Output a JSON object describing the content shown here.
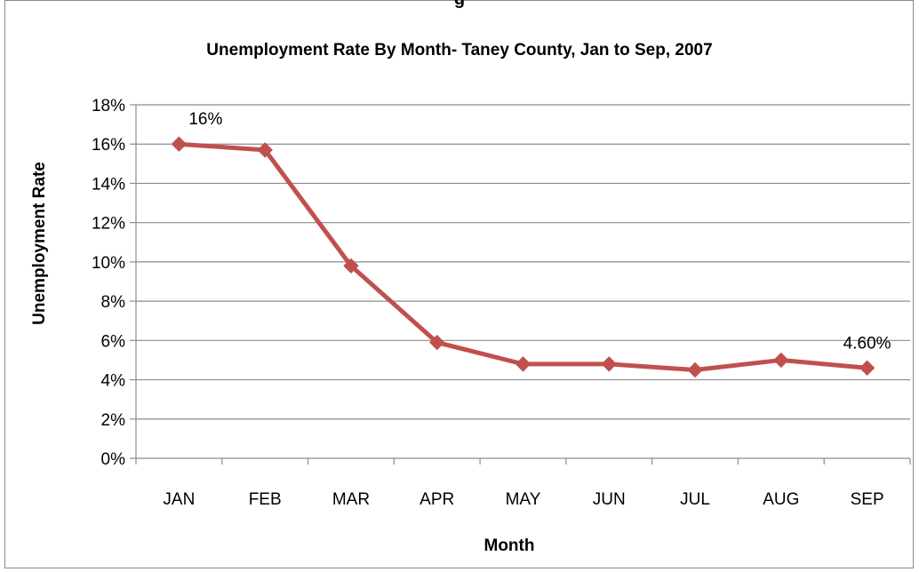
{
  "top_text": "g",
  "chart_data": {
    "type": "line",
    "title": "Unemployment Rate By Month- Taney County, Jan to Sep, 2007",
    "xlabel": "Month",
    "ylabel": "Unemployment Rate",
    "categories": [
      "JAN",
      "FEB",
      "MAR",
      "APR",
      "MAY",
      "JUN",
      "JUL",
      "AUG",
      "SEP"
    ],
    "series": [
      {
        "values": [
          16,
          15.7,
          9.8,
          5.9,
          4.8,
          4.8,
          4.5,
          5.0,
          4.6
        ],
        "color": "#c0504d"
      }
    ],
    "ylim": [
      0,
      18
    ],
    "yticks": [
      "0%",
      "2%",
      "4%",
      "6%",
      "8%",
      "10%",
      "12%",
      "14%",
      "16%",
      "18%"
    ],
    "data_labels": [
      {
        "index": 0,
        "text": "16%"
      },
      {
        "index": 8,
        "text": "4.60%"
      }
    ],
    "grid": true,
    "legend": "none"
  }
}
